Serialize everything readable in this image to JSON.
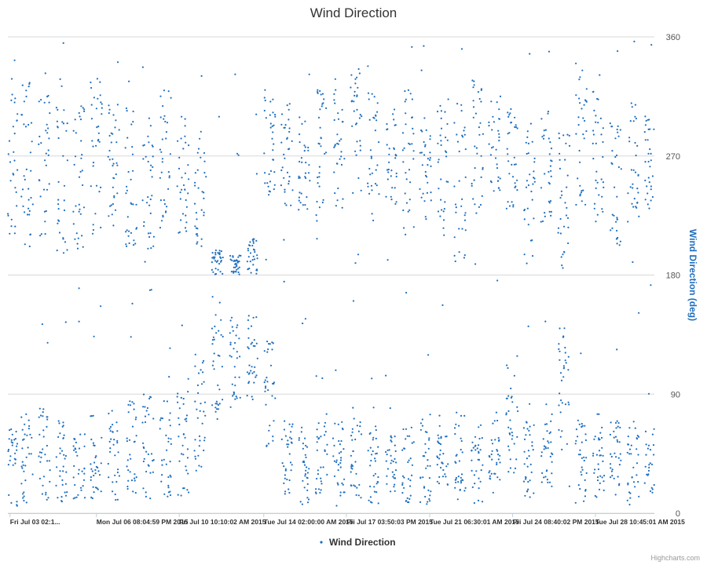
{
  "chart_data": {
    "type": "scatter",
    "title": "Wind Direction",
    "ylabel": "Wind Direction (deg)",
    "ylim": [
      0,
      360
    ],
    "yticks": [
      0,
      90,
      180,
      270,
      360
    ],
    "y_axis_side": "right",
    "grid": true,
    "x_range": [
      "2015-07-03T00:00:00",
      "2015-07-31T00:00:00"
    ],
    "xtick_labels": [
      {
        "t": "2015-07-03T02:15:00",
        "label": "Fri Jul 03 02:1..."
      },
      {
        "t": "2015-07-06T20:04:59",
        "label": "Mon Jul 06 08:04:59 PM 2015"
      },
      {
        "t": "2015-07-10T10:10:02",
        "label": "Fri Jul 10 10:10:02 AM 2015"
      },
      {
        "t": "2015-07-14T02:00:00",
        "label": "Tue Jul 14 02:00:00 AM 2015"
      },
      {
        "t": "2015-07-17T15:50:03",
        "label": "Fri Jul 17 03:50:03 PM 2015"
      },
      {
        "t": "2015-07-21T06:30:01",
        "label": "Tue Jul 21 06:30:01 AM 2015"
      },
      {
        "t": "2015-07-24T20:40:02",
        "label": "Fri Jul 24 08:40:02 PM 2015"
      },
      {
        "t": "2015-07-28T10:45:01",
        "label": "Tue Jul 28 10:45:01 AM 2015"
      }
    ],
    "legend_position": "bottom-center",
    "series": [
      {
        "name": "Wind Direction",
        "color": "#1f6fbf",
        "clusters": [
          {
            "t": "2015-07-03T04:00:00",
            "low": [
              5,
              65
            ],
            "high": [
              195,
              330
            ]
          },
          {
            "t": "2015-07-03T20:00:00",
            "low": [
              5,
              75
            ],
            "high": [
              190,
              325
            ]
          },
          {
            "t": "2015-07-04T14:00:00",
            "low": [
              5,
              80
            ],
            "high": [
              200,
              320
            ]
          },
          {
            "t": "2015-07-05T08:00:00",
            "low": [
              5,
              70
            ],
            "high": [
              195,
              330
            ]
          },
          {
            "t": "2015-07-06T02:00:00",
            "low": [
              10,
              60
            ],
            "high": [
              200,
              315
            ]
          },
          {
            "t": "2015-07-06T20:00:00",
            "low": [
              5,
              75
            ],
            "high": [
              205,
              330
            ]
          },
          {
            "t": "2015-07-07T14:00:00",
            "low": [
              10,
              80
            ],
            "high": [
              210,
              310
            ]
          },
          {
            "t": "2015-07-08T08:00:00",
            "low": [
              15,
              85
            ],
            "high": [
              200,
              320
            ]
          },
          {
            "t": "2015-07-09T02:00:00",
            "low": [
              10,
              90
            ],
            "high": [
              190,
              300
            ]
          },
          {
            "t": "2015-07-09T20:00:00",
            "low": [
              5,
              85
            ],
            "high": [
              220,
              330
            ]
          },
          {
            "t": "2015-07-10T14:00:00",
            "low": [
              10,
              100
            ],
            "high": [
              210,
              300
            ]
          },
          {
            "t": "2015-07-11T08:00:00",
            "low": [
              30,
              120
            ],
            "high": [
              200,
              290
            ]
          },
          {
            "t": "2015-07-12T02:00:00",
            "low": [
              70,
              150
            ],
            "high": [
              180,
              200
            ]
          },
          {
            "t": "2015-07-12T20:00:00",
            "low": [
              80,
              150
            ],
            "high": [
              180,
              195
            ]
          },
          {
            "t": "2015-07-13T14:00:00",
            "low": [
              85,
              150
            ],
            "high": [
              180,
              210
            ]
          },
          {
            "t": "2015-07-14T08:00:00",
            "low": [
              50,
              130
            ],
            "high": [
              240,
              320
            ]
          },
          {
            "t": "2015-07-15T02:00:00",
            "low": [
              10,
              70
            ],
            "high": [
              230,
              310
            ]
          },
          {
            "t": "2015-07-15T20:00:00",
            "low": [
              5,
              65
            ],
            "high": [
              225,
              300
            ]
          },
          {
            "t": "2015-07-16T14:00:00",
            "low": [
              10,
              75
            ],
            "high": [
              220,
              320
            ]
          },
          {
            "t": "2015-07-17T08:00:00",
            "low": [
              5,
              70
            ],
            "high": [
              230,
              330
            ]
          },
          {
            "t": "2015-07-18T02:00:00",
            "low": [
              10,
              80
            ],
            "high": [
              240,
              340
            ]
          },
          {
            "t": "2015-07-18T20:00:00",
            "low": [
              5,
              70
            ],
            "high": [
              220,
              320
            ]
          },
          {
            "t": "2015-07-19T14:00:00",
            "low": [
              15,
              60
            ],
            "high": [
              230,
              310
            ]
          },
          {
            "t": "2015-07-20T08:00:00",
            "low": [
              5,
              65
            ],
            "high": [
              210,
              320
            ]
          },
          {
            "t": "2015-07-21T02:00:00",
            "low": [
              5,
              75
            ],
            "high": [
              220,
              300
            ]
          },
          {
            "t": "2015-07-21T20:00:00",
            "low": [
              20,
              60
            ],
            "high": [
              210,
              320
            ]
          },
          {
            "t": "2015-07-22T14:00:00",
            "low": [
              10,
              80
            ],
            "high": [
              190,
              310
            ]
          },
          {
            "t": "2015-07-23T08:00:00",
            "low": [
              5,
              70
            ],
            "high": [
              230,
              330
            ]
          },
          {
            "t": "2015-07-24T02:00:00",
            "low": [
              20,
              70
            ],
            "high": [
              240,
              320
            ]
          },
          {
            "t": "2015-07-24T20:00:00",
            "low": [
              30,
              120
            ],
            "high": [
              230,
              310
            ]
          },
          {
            "t": "2015-07-25T14:00:00",
            "low": [
              10,
              70
            ],
            "high": [
              185,
              300
            ]
          },
          {
            "t": "2015-07-26T08:00:00",
            "low": [
              20,
              70
            ],
            "high": [
              220,
              310
            ]
          },
          {
            "t": "2015-07-27T02:00:00",
            "low": [
              50,
              140
            ],
            "high": [
              185,
              290
            ]
          },
          {
            "t": "2015-07-27T20:00:00",
            "low": [
              5,
              70
            ],
            "high": [
              230,
              340
            ]
          },
          {
            "t": "2015-07-28T14:00:00",
            "low": [
              10,
              75
            ],
            "high": [
              220,
              320
            ]
          },
          {
            "t": "2015-07-29T08:00:00",
            "low": [
              20,
              70
            ],
            "high": [
              200,
              300
            ]
          },
          {
            "t": "2015-07-30T02:00:00",
            "low": [
              5,
              70
            ],
            "high": [
              220,
              310
            ]
          },
          {
            "t": "2015-07-30T20:00:00",
            "low": [
              10,
              65
            ],
            "high": [
              230,
              300
            ]
          }
        ]
      }
    ]
  },
  "credits": "Highcharts.com",
  "colors": {
    "series": "#1f6fbf",
    "grid": "#d8d8d8",
    "axis_title": "#1f6fbf"
  }
}
